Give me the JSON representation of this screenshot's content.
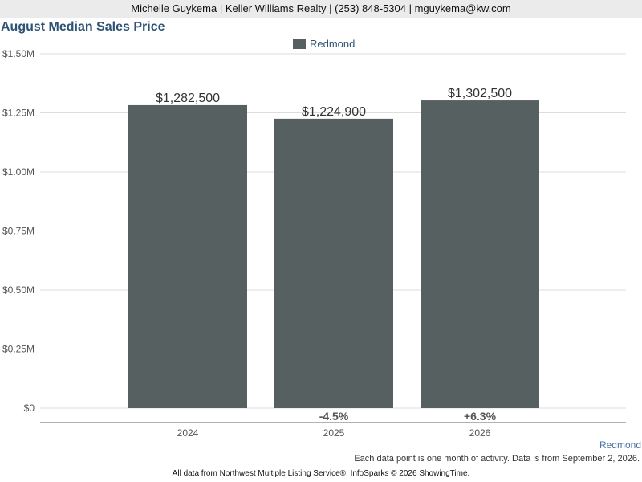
{
  "header": {
    "contact": "Michelle Guykema | Keller Williams Realty | (253) 848-5304 | mguykema@kw.com"
  },
  "chart_data": {
    "type": "bar",
    "title": "August Median Sales Price",
    "categories": [
      "2024",
      "2025",
      "2026"
    ],
    "series": [
      {
        "name": "Redmond",
        "values": [
          1282500,
          1224900,
          1302500
        ],
        "color": "#566060"
      }
    ],
    "data_labels": [
      "$1,282,500",
      "$1,224,900",
      "$1,302,500"
    ],
    "change_labels": [
      "",
      "-4.5%",
      "+6.3%"
    ],
    "ylim": [
      0,
      1500000
    ],
    "yticks": [
      {
        "value": 0,
        "label": "$0"
      },
      {
        "value": 250000,
        "label": "$0.25M"
      },
      {
        "value": 500000,
        "label": "$0.50M"
      },
      {
        "value": 750000,
        "label": "$0.75M"
      },
      {
        "value": 1000000,
        "label": "$1.00M"
      },
      {
        "value": 1250000,
        "label": "$1.25M"
      },
      {
        "value": 1500000,
        "label": "$1.50M"
      }
    ],
    "grid": true,
    "legend_position": "top-center",
    "xlabel": "",
    "ylabel": ""
  },
  "corner_label": "Redmond",
  "footnote": "Each data point is one month of activity. Data is from September 2, 2026.",
  "footer": "All data from Northwest Multiple Listing Service®. InfoSparks © 2026 ShowingTime."
}
